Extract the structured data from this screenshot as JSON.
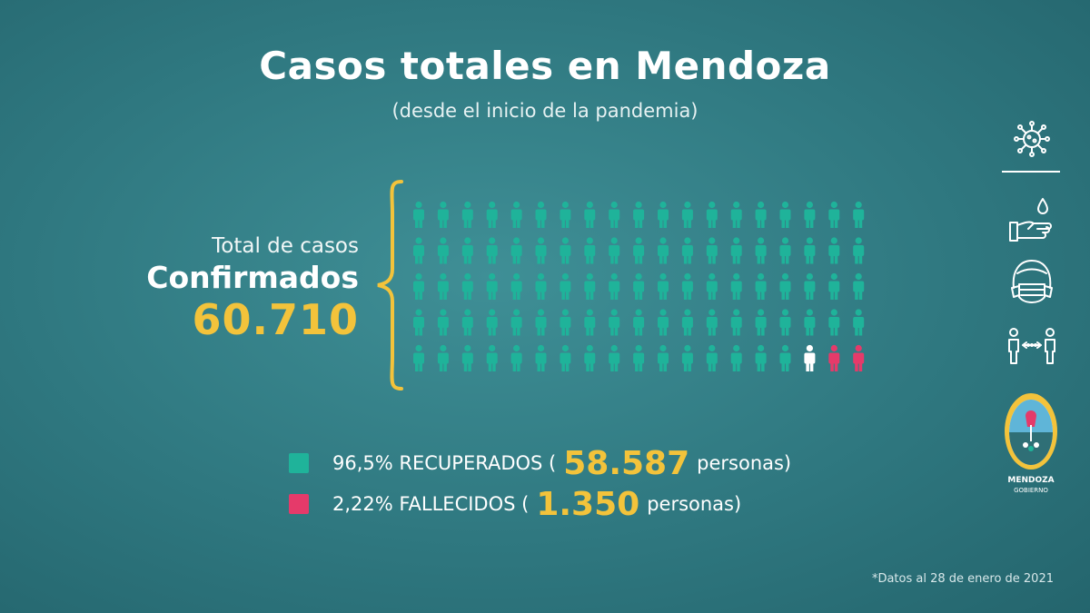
{
  "header": {
    "title": "Casos totales en Mendoza",
    "subtitle": "(desde el inicio de la pandemia)"
  },
  "confirmed": {
    "label_top": "Total de casos",
    "label_main": "Confirmados",
    "total": "60.710"
  },
  "pictogram": {
    "rows": 5,
    "cols": 19,
    "figures": [
      {
        "status": "recuperado",
        "count": 92,
        "color": "#1fb39a"
      },
      {
        "status": "otro",
        "count": 1,
        "color": "#ffffff"
      },
      {
        "status": "fallecido",
        "count": 2,
        "color": "#e53a6a"
      }
    ]
  },
  "legend": {
    "recovered": {
      "pre": "96,5% RECUPERADOS (",
      "number": "58.587",
      "post": " personas)",
      "color": "#1fb39a"
    },
    "deceased": {
      "pre": "2,22% FALLECIDOS (",
      "number": "1.350",
      "post": " personas)",
      "color": "#e53a6a"
    }
  },
  "sidebar": {
    "icons": [
      "virus-icon",
      "handwash-icon",
      "face-mask-icon",
      "social-distance-icon"
    ],
    "logo_line1": "MENDOZA",
    "logo_line2": "GOBIERNO"
  },
  "footnote": "*Datos al 28 de enero de 2021"
}
